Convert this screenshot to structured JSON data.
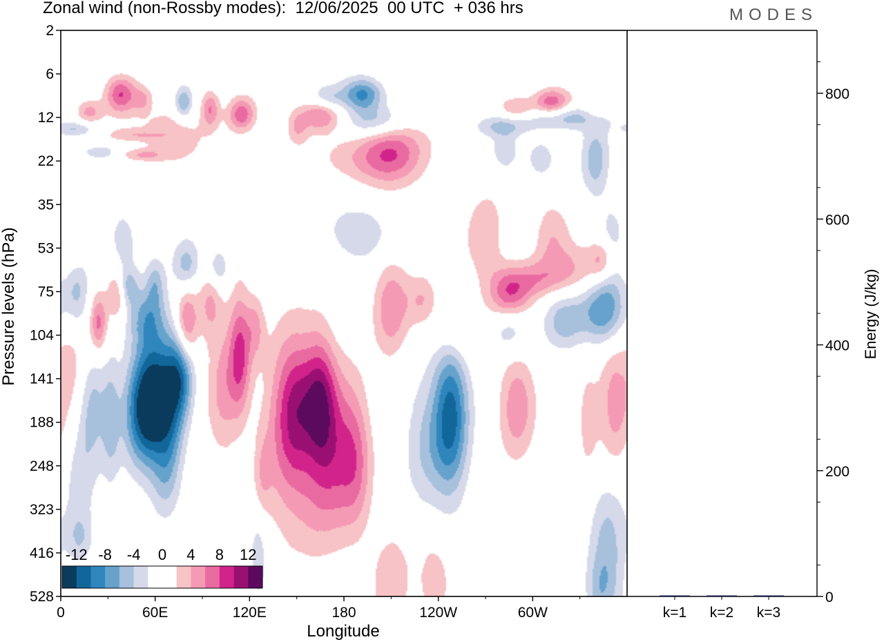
{
  "header": {
    "title": "Zonal wind (non-Rossby modes):  12/06/2025  00 UTC  + 036 hrs",
    "logo": "MODES"
  },
  "chart_data": [
    {
      "type": "heatmap",
      "title": "Zonal wind (non-Rossby modes):  12/06/2025  00 UTC  + 036 hrs",
      "xlabel": "Longitude",
      "ylabel": "Pressure levels (hPa)",
      "x_ticks": [
        "0",
        "60E",
        "120E",
        "180",
        "120W",
        "60W"
      ],
      "y_ticks": [
        "2",
        "6",
        "12",
        "22",
        "35",
        "53",
        "75",
        "104",
        "141",
        "188",
        "248",
        "323",
        "416",
        "528"
      ],
      "colorbar": {
        "labels": [
          "-12",
          "-8",
          "-4",
          "0",
          "4",
          "8",
          "12"
        ],
        "colors": [
          "#0a3a5c",
          "#12679a",
          "#2e86bd",
          "#66a2cc",
          "#a7c0dc",
          "#d6d9ea",
          "#ffffff",
          "#ffffff",
          "#f7c3c6",
          "#f59ab5",
          "#e96aa0",
          "#d2238b",
          "#9a1072",
          "#5c0a5e"
        ]
      },
      "blobs": [
        {
          "lon": 38,
          "lev": 4.4,
          "w": 7,
          "h": 0.9,
          "v": 8
        },
        {
          "lon": 18,
          "lev": 5.6,
          "w": 6,
          "h": 0.6,
          "v": 5
        },
        {
          "lon": 52,
          "lev": 4.8,
          "w": 4,
          "h": 0.6,
          "v": 3.5
        },
        {
          "lon": 78,
          "lev": 5.0,
          "w": 4,
          "h": 0.8,
          "v": -6
        },
        {
          "lon": 95,
          "lev": 5.4,
          "w": 4,
          "h": 0.9,
          "v": 6
        },
        {
          "lon": 115,
          "lev": 5.8,
          "w": 6,
          "h": 0.8,
          "v": 7
        },
        {
          "lon": 70,
          "lev": 7.2,
          "w": 14,
          "h": 1.3,
          "v": 4
        },
        {
          "lon": 25,
          "lev": 8.4,
          "w": 8,
          "h": 0.35,
          "v": -4
        },
        {
          "lon": 45,
          "lev": 7.2,
          "w": 12,
          "h": 0.3,
          "v": 3
        },
        {
          "lon": 10,
          "lev": 6.8,
          "w": 9,
          "h": 0.35,
          "v": -4
        },
        {
          "lon": 52,
          "lev": 8.6,
          "w": 10,
          "h": 0.3,
          "v": 4
        },
        {
          "lon": 192,
          "lev": 4.4,
          "w": 9,
          "h": 0.8,
          "v": -9
        },
        {
          "lon": 170,
          "lev": 4.7,
          "w": 8,
          "h": 0.6,
          "v": -4.5
        },
        {
          "lon": 165,
          "lev": 5.8,
          "w": 9,
          "h": 0.8,
          "v": 6.5
        },
        {
          "lon": 200,
          "lev": 6.3,
          "w": 14,
          "h": 0.8,
          "v": -6
        },
        {
          "lon": 150,
          "lev": 6.7,
          "w": 5,
          "h": 0.9,
          "v": 4
        },
        {
          "lon": 210,
          "lev": 8.0,
          "w": 14,
          "h": 1.6,
          "v": 6.5
        },
        {
          "lon": 195,
          "lev": 9.0,
          "w": 20,
          "h": 1.2,
          "v": 3.5
        },
        {
          "lon": 312,
          "lev": 5.0,
          "w": 8,
          "h": 0.7,
          "v": 8
        },
        {
          "lon": 290,
          "lev": 5.4,
          "w": 8,
          "h": 0.6,
          "v": 5
        },
        {
          "lon": 320,
          "lev": 6.0,
          "w": 18,
          "h": 0.6,
          "v": -6
        },
        {
          "lon": 340,
          "lev": 5.4,
          "w": 6,
          "h": 0.8,
          "v": 3
        },
        {
          "lon": 280,
          "lev": 6.6,
          "w": 12,
          "h": 0.5,
          "v": -4
        },
        {
          "lon": 340,
          "lev": 9.0,
          "w": 6,
          "h": 1.8,
          "v": -5
        },
        {
          "lon": 305,
          "lev": 8.8,
          "w": 6,
          "h": 0.9,
          "v": -4
        },
        {
          "lon": 283,
          "lev": 8.4,
          "w": 6,
          "h": 1.0,
          "v": -3.5
        },
        {
          "lon": 190,
          "lev": 14.0,
          "w": 14,
          "h": 1.4,
          "v": -4
        },
        {
          "lon": 270,
          "lev": 14.6,
          "w": 9,
          "h": 2.4,
          "v": 3.5
        },
        {
          "lon": 312,
          "lev": 14.0,
          "w": 8,
          "h": 1.8,
          "v": 3.5
        },
        {
          "lon": 350,
          "lev": 15.2,
          "w": 6,
          "h": 2.4,
          "v": -3.5
        },
        {
          "lon": 40,
          "lev": 14.5,
          "w": 6,
          "h": 1.4,
          "v": -3.5
        },
        {
          "lon": 8,
          "lev": 15.6,
          "w": 6,
          "h": 1.5,
          "v": 3.5
        },
        {
          "lon": 10,
          "lev": 17.6,
          "w": 6,
          "h": 2.0,
          "v": -6
        },
        {
          "lon": 42,
          "lev": 17.6,
          "w": 5,
          "h": 1.0,
          "v": -5
        },
        {
          "lon": 60,
          "lev": 17.4,
          "w": 4,
          "h": 1.2,
          "v": -4
        },
        {
          "lon": 80,
          "lev": 16.2,
          "w": 6,
          "h": 1.2,
          "v": -5
        },
        {
          "lon": 100,
          "lev": 16.4,
          "w": 5,
          "h": 1.0,
          "v": -4.5
        },
        {
          "lon": 36,
          "lev": 18.2,
          "w": 4,
          "h": 1.2,
          "v": 5.5
        },
        {
          "lon": 24,
          "lev": 20.2,
          "w": 4,
          "h": 1.4,
          "v": 7
        },
        {
          "lon": 55,
          "lev": 19.8,
          "w": 8,
          "h": 1.4,
          "v": -5
        },
        {
          "lon": 80,
          "lev": 20.4,
          "w": 5,
          "h": 1.8,
          "v": 7.5
        },
        {
          "lon": 95,
          "lev": 18.8,
          "w": 5,
          "h": 1.8,
          "v": 4
        },
        {
          "lon": 114,
          "lev": 22.2,
          "w": 5,
          "h": 3.0,
          "v": 8
        },
        {
          "lon": 124,
          "lev": 20.4,
          "w": 4,
          "h": 1.6,
          "v": 4
        },
        {
          "lon": 210,
          "lev": 19.0,
          "w": 8,
          "h": 2.4,
          "v": 5.5
        },
        {
          "lon": 230,
          "lev": 18.6,
          "w": 7,
          "h": 1.2,
          "v": 3.5
        },
        {
          "lon": 285,
          "lev": 18.2,
          "w": 9,
          "h": 1.2,
          "v": 7
        },
        {
          "lon": 300,
          "lev": 17.2,
          "w": 12,
          "h": 0.9,
          "v": 4
        },
        {
          "lon": 325,
          "lev": 16.6,
          "w": 14,
          "h": 1.2,
          "v": 4
        },
        {
          "lon": 345,
          "lev": 15.8,
          "w": 6,
          "h": 1.0,
          "v": 5.5
        },
        {
          "lon": 345,
          "lev": 19.4,
          "w": 10,
          "h": 1.6,
          "v": -8
        },
        {
          "lon": 320,
          "lev": 20.0,
          "w": 9,
          "h": 1.4,
          "v": -5
        },
        {
          "lon": 285,
          "lev": 20.6,
          "w": 8,
          "h": 1.2,
          "v": -4
        },
        {
          "lon": 250,
          "lev": 21.0,
          "w": 10,
          "h": 1.4,
          "v": 3.5
        },
        {
          "lon": 8,
          "lev": 23.6,
          "w": 7,
          "h": 3.0,
          "v": 3.5
        },
        {
          "lon": 20,
          "lev": 26.0,
          "w": 7,
          "h": 2.6,
          "v": -5
        },
        {
          "lon": 32,
          "lev": 27.0,
          "w": 4,
          "h": 3.0,
          "v": -4
        },
        {
          "lon": 60,
          "lev": 25.0,
          "w": 10,
          "h": 3.2,
          "v": -11.5
        },
        {
          "lon": 52,
          "lev": 26.5,
          "w": 9,
          "h": 2.6,
          "v": -7
        },
        {
          "lon": 76,
          "lev": 23.6,
          "w": 6,
          "h": 2.2,
          "v": -8.5
        },
        {
          "lon": 70,
          "lev": 27.6,
          "w": 6,
          "h": 2.6,
          "v": -4
        },
        {
          "lon": 103,
          "lev": 24.6,
          "w": 7,
          "h": 3.4,
          "v": 4.5
        },
        {
          "lon": 150,
          "lev": 25.8,
          "w": 9,
          "h": 3.4,
          "v": 8.5
        },
        {
          "lon": 165,
          "lev": 25.4,
          "w": 7,
          "h": 3.2,
          "v": 8.5
        },
        {
          "lon": 175,
          "lev": 28.6,
          "w": 10,
          "h": 3.6,
          "v": 6.5
        },
        {
          "lon": 188,
          "lev": 29.6,
          "w": 7,
          "h": 3.4,
          "v": 5
        },
        {
          "lon": 140,
          "lev": 27.6,
          "w": 10,
          "h": 4.4,
          "v": 3.5
        },
        {
          "lon": 160,
          "lev": 32.4,
          "w": 14,
          "h": 3.0,
          "v": 3.5
        },
        {
          "lon": 248,
          "lev": 26.4,
          "w": 8,
          "h": 3.8,
          "v": -10.5
        },
        {
          "lon": 232,
          "lev": 28.4,
          "w": 10,
          "h": 3.0,
          "v": -4
        },
        {
          "lon": 290,
          "lev": 25.8,
          "w": 8,
          "h": 2.6,
          "v": 5.5
        },
        {
          "lon": 352,
          "lev": 25.6,
          "w": 7,
          "h": 3.2,
          "v": 5
        },
        {
          "lon": 335,
          "lev": 27.0,
          "w": 5,
          "h": 2.6,
          "v": 3
        },
        {
          "lon": 12,
          "lev": 30.6,
          "w": 7,
          "h": 3.0,
          "v": -3
        },
        {
          "lon": 128,
          "lev": 31.0,
          "w": 4,
          "h": 2.4,
          "v": 3
        },
        {
          "lon": 66,
          "lev": 31.0,
          "w": 6,
          "h": 2.0,
          "v": -3
        },
        {
          "lon": 210,
          "lev": 38.0,
          "w": 9,
          "h": 2.6,
          "v": 3.5
        },
        {
          "lon": 238,
          "lev": 38.0,
          "w": 7,
          "h": 2.0,
          "v": 3.5
        },
        {
          "lon": 348,
          "lev": 36.0,
          "w": 8,
          "h": 3.6,
          "v": -5
        },
        {
          "lon": 342,
          "lev": 38.6,
          "w": 6,
          "h": 1.6,
          "v": -3
        },
        {
          "lon": 126,
          "lev": 36.0,
          "w": 4,
          "h": 2.6,
          "v": -3.5
        },
        {
          "lon": 12,
          "lev": 35.0,
          "w": 6,
          "h": 1.2,
          "v": -3.5
        }
      ],
      "energy_panel": {
        "ylabel": "Energy (J/kg)",
        "y_ticks": [
          "0",
          "200",
          "400",
          "600",
          "800"
        ],
        "ylim": [
          0,
          900
        ],
        "categories": [
          "k=1",
          "k=2",
          "k=3"
        ],
        "values": [
          1.5,
          1.5,
          1
        ],
        "bar_color": "#1a1f5c"
      }
    }
  ]
}
